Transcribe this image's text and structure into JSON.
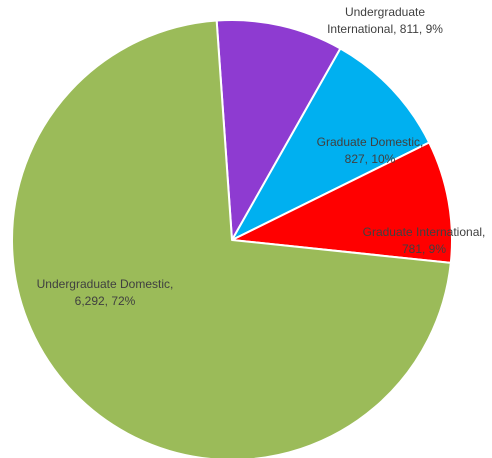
{
  "chart_data": {
    "type": "pie",
    "title": "",
    "start_angle_deg": 356,
    "direction": "clockwise",
    "slices": [
      {
        "name": "Undergraduate International",
        "value": 811,
        "percent": "9%",
        "color": "#8e3bd1",
        "label_lines": [
          "Undergraduate",
          "International, 811, 9%"
        ]
      },
      {
        "name": "Graduate Domestic",
        "value": 827,
        "percent": "10%",
        "color": "#00b0f0",
        "label_lines": [
          "Graduate Domestic,",
          "827, 10%"
        ]
      },
      {
        "name": "Graduate International",
        "value": 781,
        "percent": "9%",
        "color": "#ff0000",
        "label_lines": [
          "Graduate International,",
          "781, 9%"
        ]
      },
      {
        "name": "Undergraduate Domestic",
        "value": 6292,
        "percent": "72%",
        "color": "#9bbb59",
        "label_lines": [
          "Undergraduate Domestic,",
          "6,292, 72%"
        ]
      }
    ]
  }
}
